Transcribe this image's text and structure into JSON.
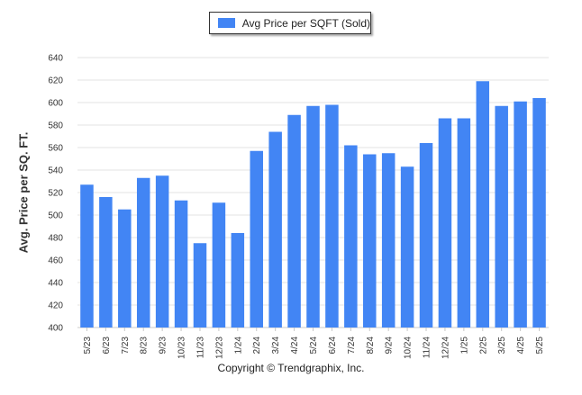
{
  "chart_data": {
    "type": "bar",
    "title": "",
    "xlabel": "",
    "ylabel": "Avg. Price per SQ. FT.",
    "ylim": [
      400,
      640
    ],
    "yticks": [
      400,
      420,
      440,
      460,
      480,
      500,
      520,
      540,
      560,
      580,
      600,
      620,
      640
    ],
    "grid": true,
    "legend_position": "top-center",
    "categories": [
      "5/23",
      "6/23",
      "7/23",
      "8/23",
      "9/23",
      "10/23",
      "11/23",
      "12/23",
      "1/24",
      "2/24",
      "3/24",
      "4/24",
      "5/24",
      "6/24",
      "7/24",
      "8/24",
      "9/24",
      "10/24",
      "11/24",
      "12/24",
      "1/25",
      "2/25",
      "3/25",
      "4/25",
      "5/25"
    ],
    "series": [
      {
        "name": "Avg Price per SQFT (Sold)",
        "color": "#4285F4",
        "values": [
          527,
          516,
          505,
          533,
          535,
          513,
          475,
          511,
          484,
          557,
          574,
          589,
          597,
          598,
          562,
          554,
          555,
          543,
          564,
          586,
          586,
          619,
          597,
          601,
          604
        ]
      }
    ]
  },
  "footer": {
    "copyright": "Copyright © Trendgraphix, Inc."
  }
}
